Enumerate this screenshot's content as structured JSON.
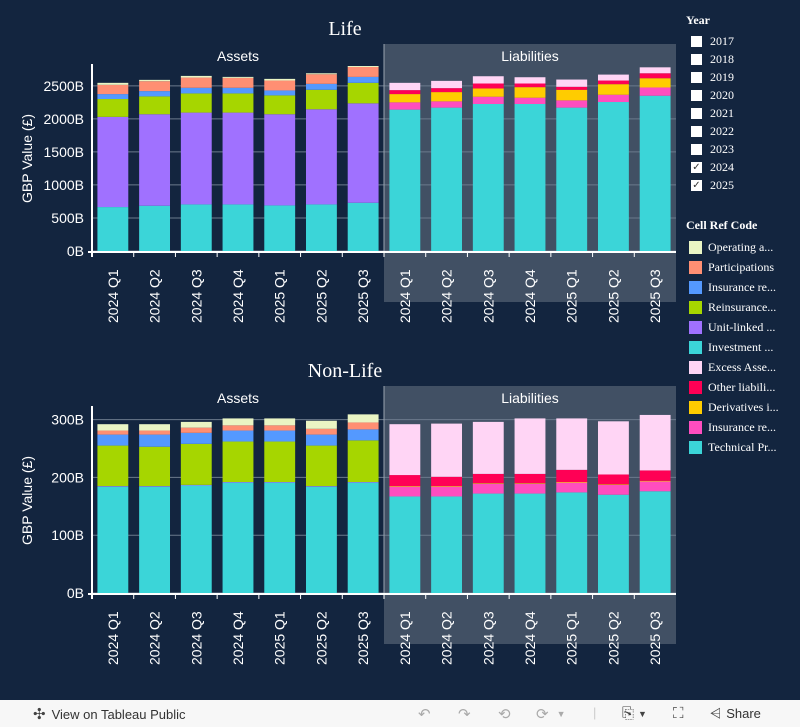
{
  "colors": {
    "Operating assets": "#eaf5c4",
    "Participations": "#ff8f73",
    "Insurance receivables": "#5499ff",
    "Reinsurance recoverables": "#a6d600",
    "Unit-linked assets": "#a071ff",
    "Investments": "#3bd5d8",
    "Excess Assets over Liabilities": "#ffd5f5",
    "Other liabilities": "#ff0055",
    "Derivatives in liabilities": "#ffcc00",
    "Insurance related liabilities": "#ff4dbf",
    "Technical Provisions": "#3bd5d8"
  },
  "year_filter": {
    "title": "Year",
    "items": [
      {
        "label": "2017",
        "checked": false
      },
      {
        "label": "2018",
        "checked": false
      },
      {
        "label": "2019",
        "checked": false
      },
      {
        "label": "2020",
        "checked": false
      },
      {
        "label": "2021",
        "checked": false
      },
      {
        "label": "2022",
        "checked": false
      },
      {
        "label": "2023",
        "checked": false
      },
      {
        "label": "2024",
        "checked": true
      },
      {
        "label": "2025",
        "checked": true
      }
    ]
  },
  "legend": {
    "title": "Cell Ref Code",
    "items": [
      {
        "label": "Operating a...",
        "color": "#eaf5c4"
      },
      {
        "label": "Participations",
        "color": "#ff8f73"
      },
      {
        "label": "Insurance re...",
        "color": "#5499ff"
      },
      {
        "label": "Reinsurance...",
        "color": "#a6d600"
      },
      {
        "label": "Unit-linked ...",
        "color": "#a071ff"
      },
      {
        "label": "Investment ...",
        "color": "#3bd5d8"
      },
      {
        "label": "Excess Asse...",
        "color": "#ffd5f5"
      },
      {
        "label": "Other liabili...",
        "color": "#ff0055"
      },
      {
        "label": "Derivatives i...",
        "color": "#ffcc00"
      },
      {
        "label": "Insurance re...",
        "color": "#ff4dbf"
      },
      {
        "label": "Technical Pr...",
        "color": "#3bd5d8"
      }
    ]
  },
  "footer": {
    "view_label": "View on Tableau Public",
    "share_label": "Share"
  },
  "chart_data": [
    {
      "type": "bar",
      "stacked": true,
      "title": "Life",
      "ylabel": "GBP Value (£)",
      "ylim": [
        0,
        2800
      ],
      "yticks": [
        "0B",
        "500B",
        "1000B",
        "1500B",
        "2000B",
        "2500B"
      ],
      "ytick_values": [
        0,
        500,
        1000,
        1500,
        2000,
        2500
      ],
      "panels": [
        {
          "label": "Assets",
          "categories": [
            "2024 Q1",
            "2024 Q2",
            "2024 Q3",
            "2024 Q4",
            "2025 Q1",
            "2025 Q2",
            "2025 Q3"
          ],
          "series": [
            {
              "name": "Investments",
              "values": [
                665,
                685,
                705,
                705,
                690,
                705,
                730
              ]
            },
            {
              "name": "Unit-linked assets",
              "values": [
                1365,
                1385,
                1390,
                1390,
                1380,
                1440,
                1505
              ]
            },
            {
              "name": "Reinsurance recoverables",
              "values": [
                270,
                270,
                290,
                290,
                285,
                295,
                310
              ]
            },
            {
              "name": "Insurance receivables",
              "values": [
                75,
                80,
                85,
                85,
                75,
                90,
                90
              ]
            },
            {
              "name": "Participations",
              "values": [
                140,
                150,
                155,
                150,
                150,
                145,
                150
              ]
            },
            {
              "name": "Operating assets",
              "values": [
                30,
                20,
                25,
                15,
                25,
                15,
                15
              ]
            }
          ]
        },
        {
          "label": "Liabilities",
          "categories": [
            "2024 Q1",
            "2024 Q2",
            "2024 Q3",
            "2024 Q4",
            "2025 Q1",
            "2025 Q2",
            "2025 Q3"
          ],
          "series": [
            {
              "name": "Technical Provisions",
              "values": [
                2140,
                2170,
                2225,
                2225,
                2170,
                2255,
                2350
              ]
            },
            {
              "name": "Insurance related liabilities",
              "values": [
                110,
                95,
                110,
                95,
                110,
                110,
                125
              ]
            },
            {
              "name": "Derivatives in liabilities",
              "values": [
                125,
                140,
                125,
                160,
                160,
                160,
                140
              ]
            },
            {
              "name": "Other liabilities",
              "values": [
                60,
                60,
                75,
                55,
                45,
                55,
                75
              ]
            },
            {
              "name": "Excess Assets over Liabilities",
              "values": [
                110,
                110,
                110,
                95,
                110,
                90,
                90
              ]
            }
          ]
        }
      ]
    },
    {
      "type": "bar",
      "stacked": true,
      "title": "Non-Life",
      "ylabel": "GBP Value (£)",
      "ylim": [
        0,
        320
      ],
      "yticks": [
        "0B",
        "100B",
        "200B",
        "300B"
      ],
      "ytick_values": [
        0,
        100,
        200,
        300
      ],
      "panels": [
        {
          "label": "Assets",
          "categories": [
            "2024 Q1",
            "2024 Q2",
            "2024 Q3",
            "2024 Q4",
            "2025 Q1",
            "2025 Q2",
            "2025 Q3"
          ],
          "series": [
            {
              "name": "Investments",
              "values": [
                184,
                184,
                186,
                191,
                191,
                184,
                191
              ]
            },
            {
              "name": "Unit-linked assets",
              "values": [
                1,
                1,
                1,
                1,
                1,
                1,
                1
              ]
            },
            {
              "name": "Reinsurance recoverables",
              "values": [
                70,
                68,
                71,
                70,
                70,
                70,
                72
              ]
            },
            {
              "name": "Insurance receivables",
              "values": [
                19,
                21,
                19,
                19,
                19,
                19,
                19
              ]
            },
            {
              "name": "Participations",
              "values": [
                7,
                7,
                9,
                9,
                9,
                10,
                12
              ]
            },
            {
              "name": "Operating assets",
              "values": [
                11,
                11,
                10,
                12,
                12,
                14,
                14
              ]
            }
          ]
        },
        {
          "label": "Liabilities",
          "categories": [
            "2024 Q1",
            "2024 Q2",
            "2024 Q3",
            "2024 Q4",
            "2025 Q1",
            "2025 Q2",
            "2025 Q3"
          ],
          "series": [
            {
              "name": "Technical Provisions",
              "values": [
                167,
                167,
                172,
                172,
                174,
                170,
                176
              ]
            },
            {
              "name": "Insurance related liabilities",
              "values": [
                17,
                17,
                17,
                17,
                17,
                17,
                17
              ]
            },
            {
              "name": "Derivatives in liabilities",
              "values": [
                1,
                1,
                1,
                1,
                1,
                1,
                1
              ]
            },
            {
              "name": "Other liabilities",
              "values": [
                19,
                16,
                16,
                16,
                21,
                17,
                18
              ]
            },
            {
              "name": "Excess Assets over Liabilities",
              "values": [
                88,
                92,
                90,
                96,
                89,
                92,
                96
              ]
            }
          ]
        }
      ]
    }
  ]
}
